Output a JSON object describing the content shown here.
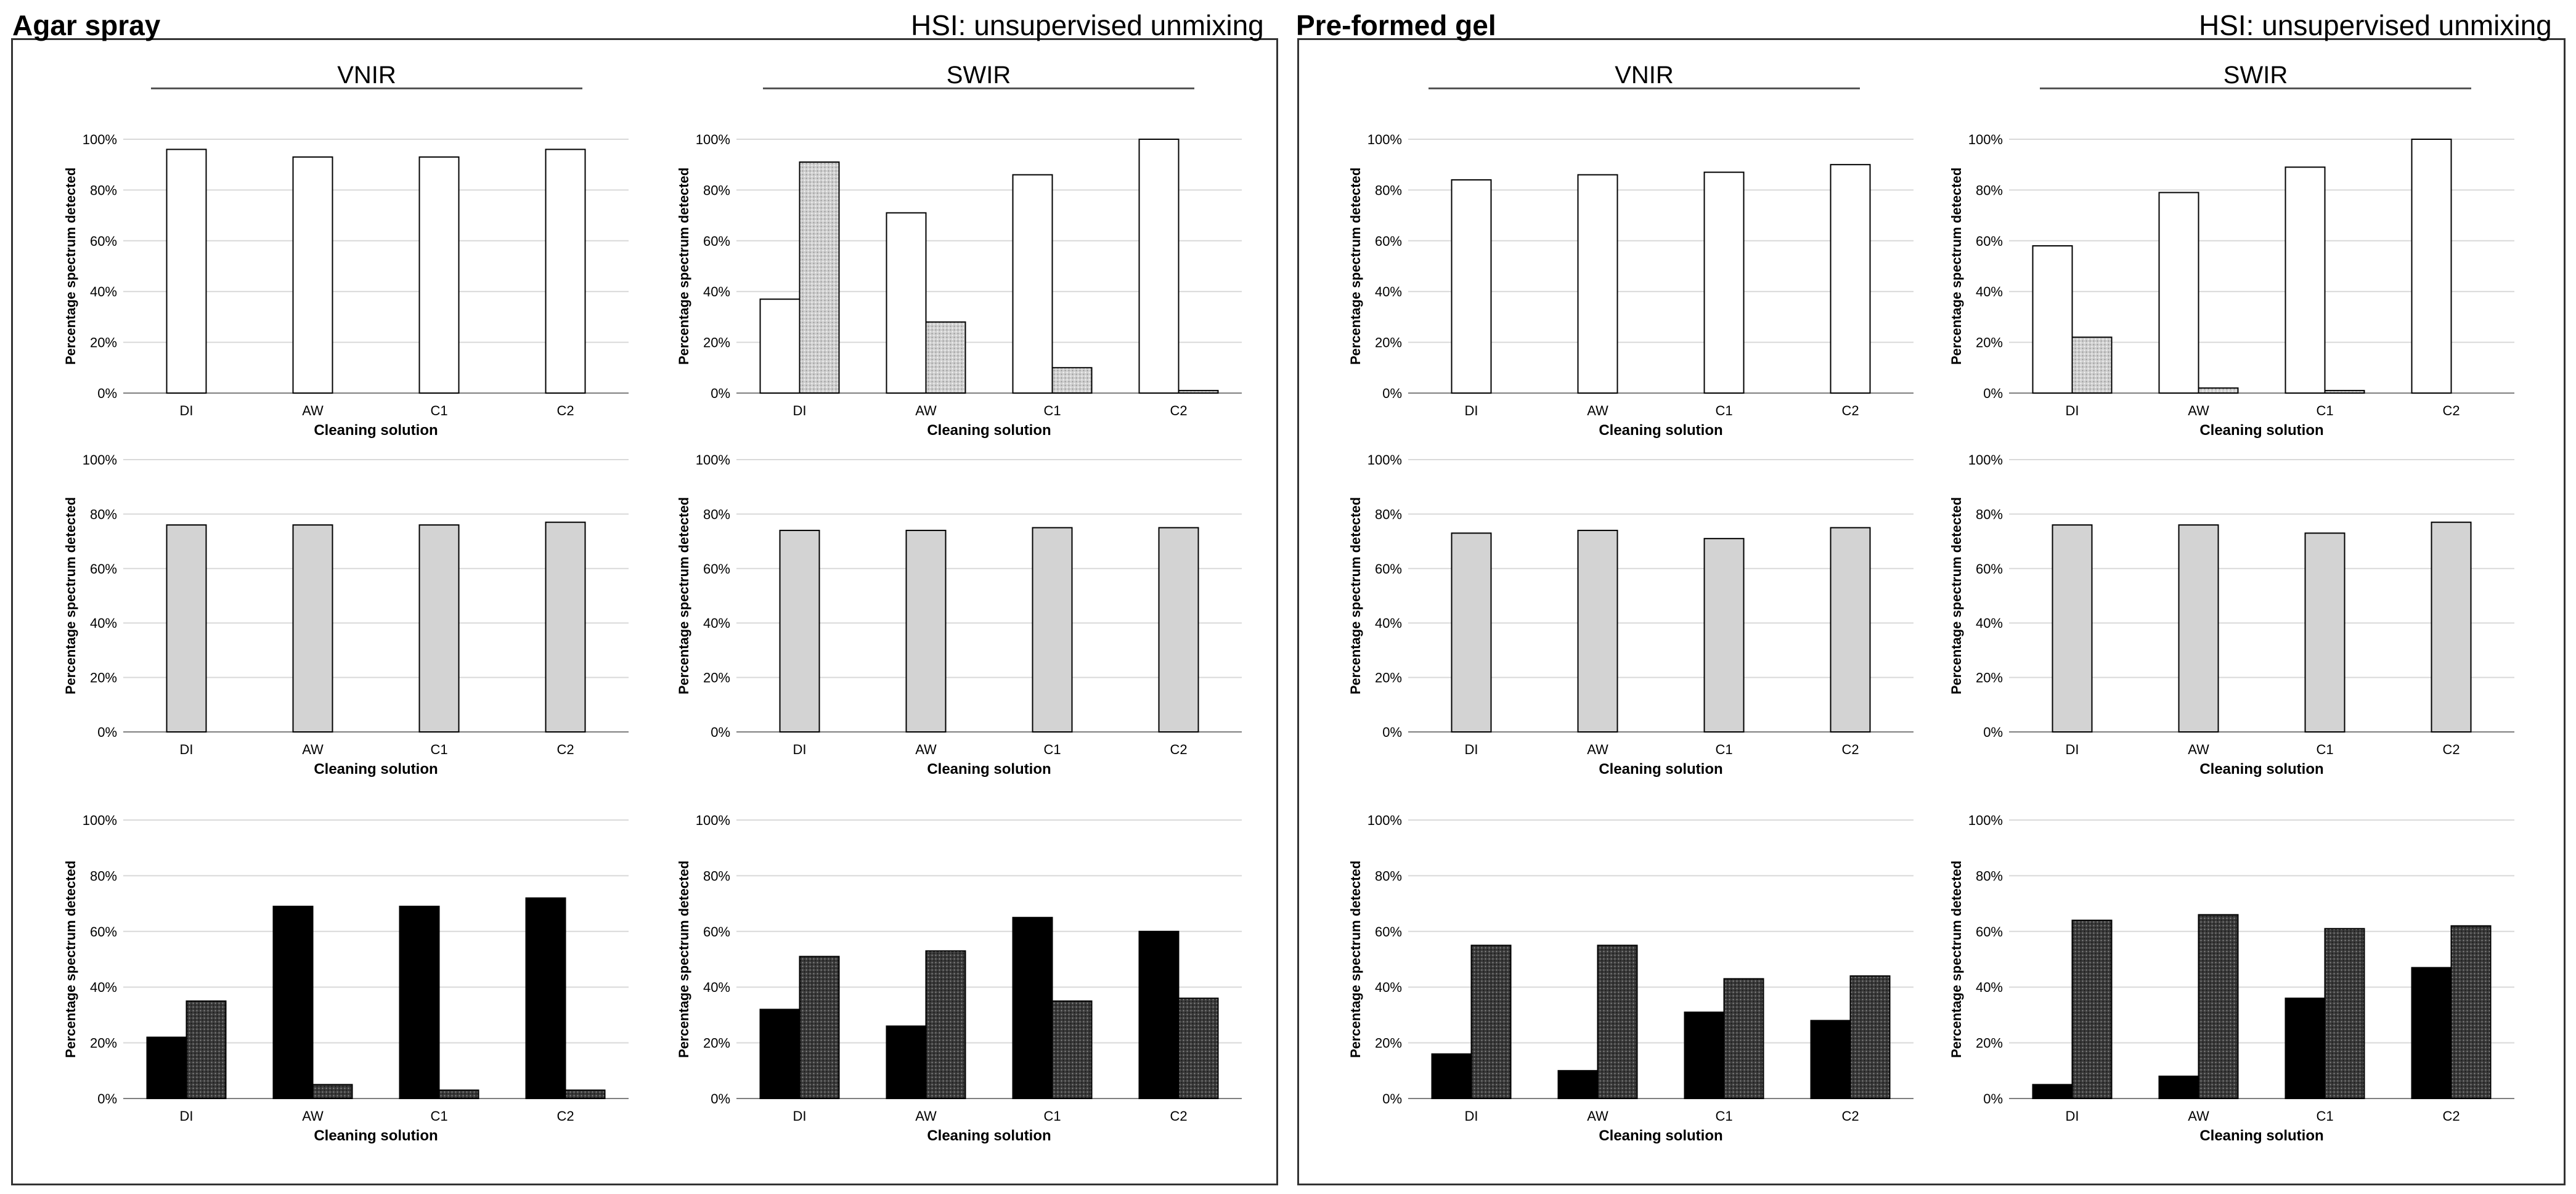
{
  "panels": [
    {
      "title": "Agar spray",
      "subtitle": "HSI: unsupervised unmixing",
      "columns": [
        "VNIR",
        "SWIR"
      ]
    },
    {
      "title": "Pre-formed gel",
      "subtitle": "HSI: unsupervised unmixing",
      "columns": [
        "VNIR",
        "SWIR"
      ]
    }
  ],
  "colors": {
    "white": "#ffffff",
    "gray": "#d3d3d3",
    "black": "#000000",
    "dotted_light": "#cfcfcf",
    "dotted_dark": "#3a3a3a",
    "grid": "#d9d9d9",
    "axis": "#7f7f7f"
  },
  "chart_data": [
    {
      "type": "bar",
      "panel": "Agar spray",
      "column": "VNIR",
      "row": 1,
      "categories": [
        "DI",
        "AW",
        "C1",
        "C2"
      ],
      "series": [
        {
          "name": "s1",
          "style": "white",
          "values": [
            96,
            93,
            93,
            96
          ]
        }
      ],
      "xlabel": "Cleaning solution",
      "ylabel": "Percentage spectrum detected",
      "ylim": [
        0,
        100
      ],
      "yticks": [
        "0%",
        "20%",
        "40%",
        "60%",
        "80%",
        "100%"
      ]
    },
    {
      "type": "bar",
      "panel": "Agar spray",
      "column": "SWIR",
      "row": 1,
      "categories": [
        "DI",
        "AW",
        "C1",
        "C2"
      ],
      "series": [
        {
          "name": "s1",
          "style": "white",
          "values": [
            37,
            71,
            86,
            100
          ]
        },
        {
          "name": "s2",
          "style": "dotted_light",
          "values": [
            91,
            28,
            10,
            1
          ]
        }
      ],
      "xlabel": "Cleaning solution",
      "ylabel": "Percentage spectrum detected",
      "ylim": [
        0,
        100
      ],
      "yticks": [
        "0%",
        "20%",
        "40%",
        "60%",
        "80%",
        "100%"
      ]
    },
    {
      "type": "bar",
      "panel": "Agar spray",
      "column": "VNIR",
      "row": 2,
      "categories": [
        "DI",
        "AW",
        "C1",
        "C2"
      ],
      "series": [
        {
          "name": "s1",
          "style": "gray",
          "values": [
            76,
            76,
            76,
            77
          ]
        }
      ],
      "xlabel": "Cleaning solution",
      "ylabel": "Percentage spectrum detected",
      "ylim": [
        0,
        100
      ],
      "yticks": [
        "0%",
        "20%",
        "40%",
        "60%",
        "80%",
        "100%"
      ]
    },
    {
      "type": "bar",
      "panel": "Agar spray",
      "column": "SWIR",
      "row": 2,
      "categories": [
        "DI",
        "AW",
        "C1",
        "C2"
      ],
      "series": [
        {
          "name": "s1",
          "style": "gray",
          "values": [
            74,
            74,
            75,
            75
          ]
        }
      ],
      "xlabel": "Cleaning solution",
      "ylabel": "Percentage spectrum detected",
      "ylim": [
        0,
        100
      ],
      "yticks": [
        "0%",
        "20%",
        "40%",
        "60%",
        "80%",
        "100%"
      ]
    },
    {
      "type": "bar",
      "panel": "Agar spray",
      "column": "VNIR",
      "row": 3,
      "categories": [
        "DI",
        "AW",
        "C1",
        "C2"
      ],
      "series": [
        {
          "name": "s1",
          "style": "black",
          "values": [
            22,
            69,
            69,
            72
          ]
        },
        {
          "name": "s2",
          "style": "dotted_dark",
          "values": [
            35,
            5,
            3,
            3
          ]
        }
      ],
      "xlabel": "Cleaning solution",
      "ylabel": "Percentage spectrum detected",
      "ylim": [
        0,
        100
      ],
      "yticks": [
        "0%",
        "20%",
        "40%",
        "60%",
        "80%",
        "100%"
      ]
    },
    {
      "type": "bar",
      "panel": "Agar spray",
      "column": "SWIR",
      "row": 3,
      "categories": [
        "DI",
        "AW",
        "C1",
        "C2"
      ],
      "series": [
        {
          "name": "s1",
          "style": "black",
          "values": [
            32,
            26,
            65,
            60
          ]
        },
        {
          "name": "s2",
          "style": "dotted_dark",
          "values": [
            51,
            53,
            35,
            36
          ]
        }
      ],
      "xlabel": "Cleaning solution",
      "ylabel": "Percentage spectrum detected",
      "ylim": [
        0,
        100
      ],
      "yticks": [
        "0%",
        "20%",
        "40%",
        "60%",
        "80%",
        "100%"
      ]
    },
    {
      "type": "bar",
      "panel": "Pre-formed gel",
      "column": "VNIR",
      "row": 1,
      "categories": [
        "DI",
        "AW",
        "C1",
        "C2"
      ],
      "series": [
        {
          "name": "s1",
          "style": "white",
          "values": [
            84,
            86,
            87,
            90
          ]
        }
      ],
      "xlabel": "Cleaning solution",
      "ylabel": "Percentage spectrum detected",
      "ylim": [
        0,
        100
      ],
      "yticks": [
        "0%",
        "20%",
        "40%",
        "60%",
        "80%",
        "100%"
      ]
    },
    {
      "type": "bar",
      "panel": "Pre-formed gel",
      "column": "SWIR",
      "row": 1,
      "categories": [
        "DI",
        "AW",
        "C1",
        "C2"
      ],
      "series": [
        {
          "name": "s1",
          "style": "white",
          "values": [
            58,
            79,
            89,
            100
          ]
        },
        {
          "name": "s2",
          "style": "dotted_light",
          "values": [
            22,
            2,
            1,
            0
          ]
        }
      ],
      "xlabel": "Cleaning solution",
      "ylabel": "Percentage spectrum detected",
      "ylim": [
        0,
        100
      ],
      "yticks": [
        "0%",
        "20%",
        "40%",
        "60%",
        "80%",
        "100%"
      ]
    },
    {
      "type": "bar",
      "panel": "Pre-formed gel",
      "column": "VNIR",
      "row": 2,
      "categories": [
        "DI",
        "AW",
        "C1",
        "C2"
      ],
      "series": [
        {
          "name": "s1",
          "style": "gray",
          "values": [
            73,
            74,
            71,
            75
          ]
        }
      ],
      "xlabel": "Cleaning solution",
      "ylabel": "Percentage spectrum detected",
      "ylim": [
        0,
        100
      ],
      "yticks": [
        "0%",
        "20%",
        "40%",
        "60%",
        "80%",
        "100%"
      ]
    },
    {
      "type": "bar",
      "panel": "Pre-formed gel",
      "column": "SWIR",
      "row": 2,
      "categories": [
        "DI",
        "AW",
        "C1",
        "C2"
      ],
      "series": [
        {
          "name": "s1",
          "style": "gray",
          "values": [
            76,
            76,
            73,
            77
          ]
        }
      ],
      "xlabel": "Cleaning solution",
      "ylabel": "Percentage  spectrum detected",
      "ylim": [
        0,
        100
      ],
      "yticks": [
        "0%",
        "20%",
        "40%",
        "60%",
        "80%",
        "100%"
      ]
    },
    {
      "type": "bar",
      "panel": "Pre-formed gel",
      "column": "VNIR",
      "row": 3,
      "categories": [
        "DI",
        "AW",
        "C1",
        "C2"
      ],
      "series": [
        {
          "name": "s1",
          "style": "black",
          "values": [
            16,
            10,
            31,
            28
          ]
        },
        {
          "name": "s2",
          "style": "dotted_dark",
          "values": [
            55,
            55,
            43,
            44
          ]
        }
      ],
      "xlabel": "Cleaning solution",
      "ylabel": "Percentage spectrum detected",
      "ylim": [
        0,
        100
      ],
      "yticks": [
        "0%",
        "20%",
        "40%",
        "60%",
        "80%",
        "100%"
      ]
    },
    {
      "type": "bar",
      "panel": "Pre-formed gel",
      "column": "SWIR",
      "row": 3,
      "categories": [
        "DI",
        "AW",
        "C1",
        "C2"
      ],
      "series": [
        {
          "name": "s1",
          "style": "black",
          "values": [
            5,
            8,
            36,
            47
          ]
        },
        {
          "name": "s2",
          "style": "dotted_dark",
          "values": [
            64,
            66,
            61,
            62
          ]
        }
      ],
      "xlabel": "Cleaning solution",
      "ylabel": "Percentage spectrum detected",
      "ylim": [
        0,
        100
      ],
      "yticks": [
        "0%",
        "20%",
        "40%",
        "60%",
        "80%",
        "100%"
      ]
    }
  ]
}
